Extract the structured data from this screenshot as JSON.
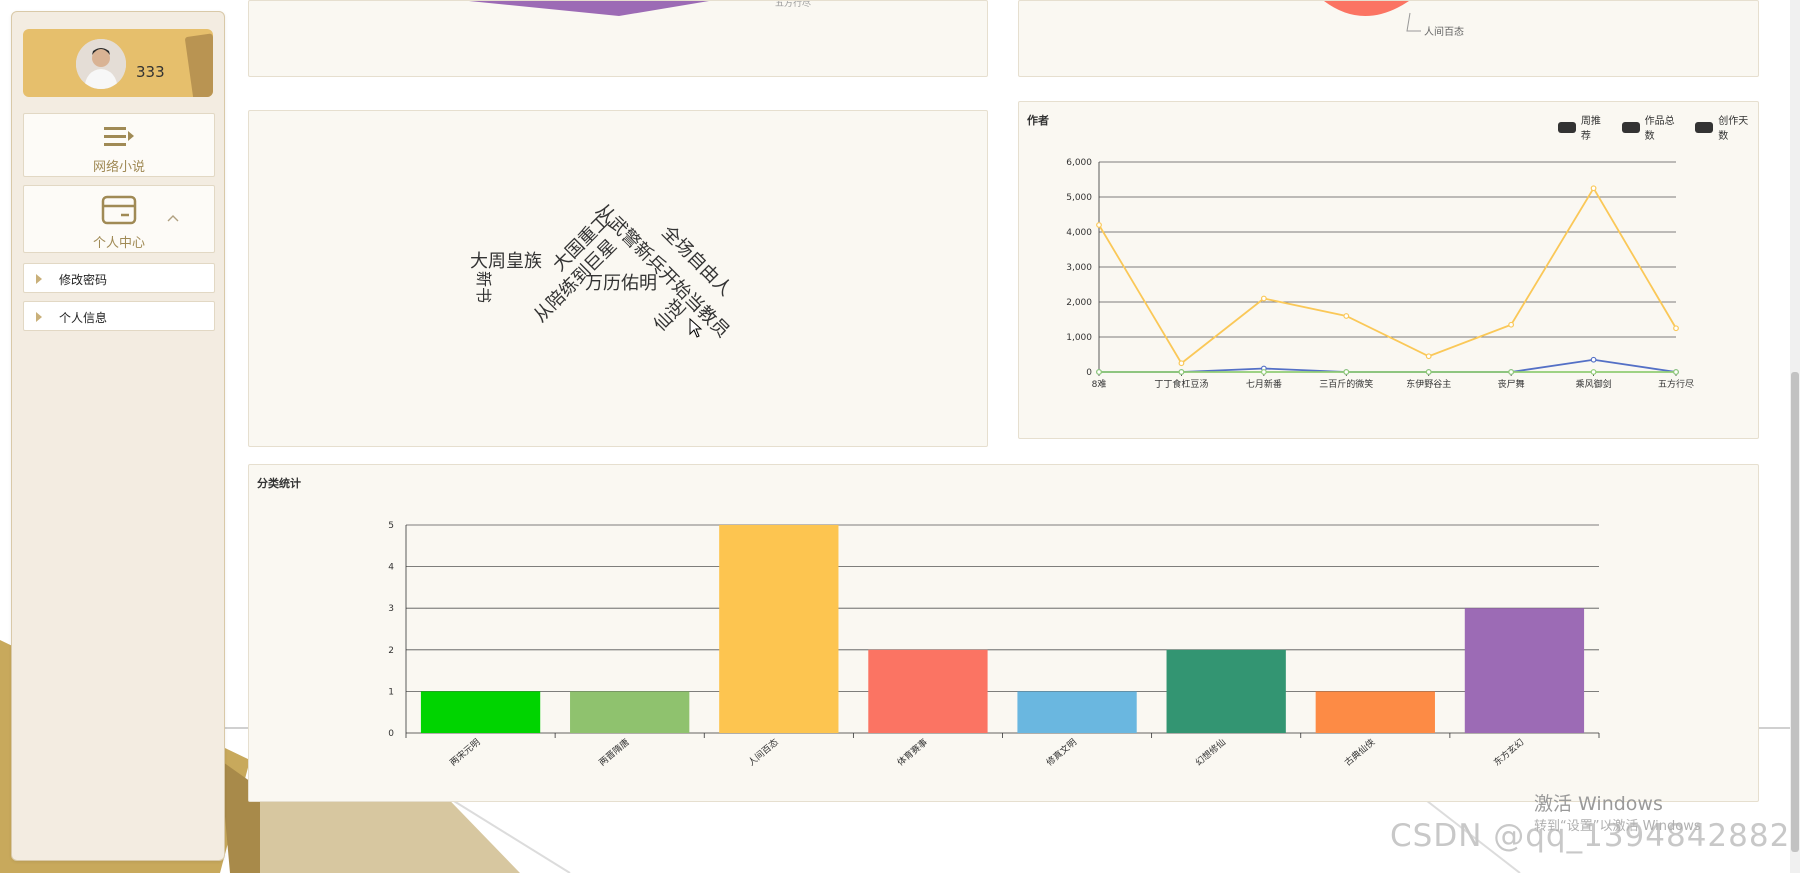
{
  "user": {
    "name": "333"
  },
  "menu": {
    "novel": "网络小说",
    "personal": "个人中心",
    "sub": [
      "修改密码",
      "个人信息"
    ]
  },
  "pie_partial": {
    "label": "人间百态",
    "top_label": "五方行尽"
  },
  "wordcloud": {
    "words": [
      {
        "text": "大周皇族",
        "color": "#6a5fb0"
      },
      {
        "text": "大国重工",
        "color": "#a0409a"
      },
      {
        "text": "从武警新兵开始当教员",
        "color": "#5a5a9a"
      },
      {
        "text": "全场自由人",
        "color": "#6a5fb0"
      },
      {
        "text": "从陪练到巨星",
        "color": "#5a5a9a"
      },
      {
        "text": "万历佑明",
        "color": "#a0409a"
      },
      {
        "text": "新书",
        "color": "#2e8b57"
      },
      {
        "text": "仙逆",
        "color": "#3b6e8f"
      }
    ]
  },
  "author_chart": {
    "title": "作者",
    "legend": [
      "周推荐",
      "作品总数",
      "创作天数"
    ],
    "colors": {
      "weekly": "#5470c6",
      "total": "#91cc75",
      "days": "#fac858"
    },
    "chart_data": {
      "type": "line",
      "categories": [
        "8难",
        "丁丁食杠豆汤",
        "七月新番",
        "三百斤的微笑",
        "东伊野谷主",
        "丧尸舞",
        "乘风御剑",
        "五方行尽"
      ],
      "series": [
        {
          "name": "周推荐",
          "values": [
            0,
            0,
            100,
            0,
            0,
            0,
            350,
            0
          ]
        },
        {
          "name": "作品总数",
          "values": [
            0,
            0,
            0,
            0,
            0,
            0,
            0,
            0
          ]
        },
        {
          "name": "创作天数",
          "values": [
            4200,
            250,
            2100,
            1600,
            450,
            1350,
            5250,
            1250
          ]
        }
      ],
      "yticks": [
        "0",
        "1,000",
        "2,000",
        "3,000",
        "4,000",
        "5,000",
        "6,000"
      ],
      "ylim": [
        0,
        6000
      ]
    }
  },
  "category_chart": {
    "title": "分类统计",
    "chart_data": {
      "type": "bar",
      "categories": [
        "两宋元明",
        "两晋隋唐",
        "人间百态",
        "体育赛事",
        "修真文明",
        "幻想修仙",
        "古典仙侠",
        "东方玄幻"
      ],
      "values": [
        1,
        1,
        5,
        2,
        1,
        2,
        1,
        3
      ],
      "colors": [
        "#00d400",
        "#8fc26e",
        "#fdc550",
        "#fb7463",
        "#6ab7e0",
        "#339572",
        "#fd8b45",
        "#9c6bb5"
      ],
      "yticks": [
        "0",
        "1",
        "2",
        "3",
        "4",
        "5"
      ],
      "ylim": [
        0,
        5
      ]
    }
  },
  "watermark": {
    "activate": "激活 Windows",
    "goto": "转到“设置”以激活 Windows",
    "csdn": "CSDN @qq_1394842882"
  }
}
